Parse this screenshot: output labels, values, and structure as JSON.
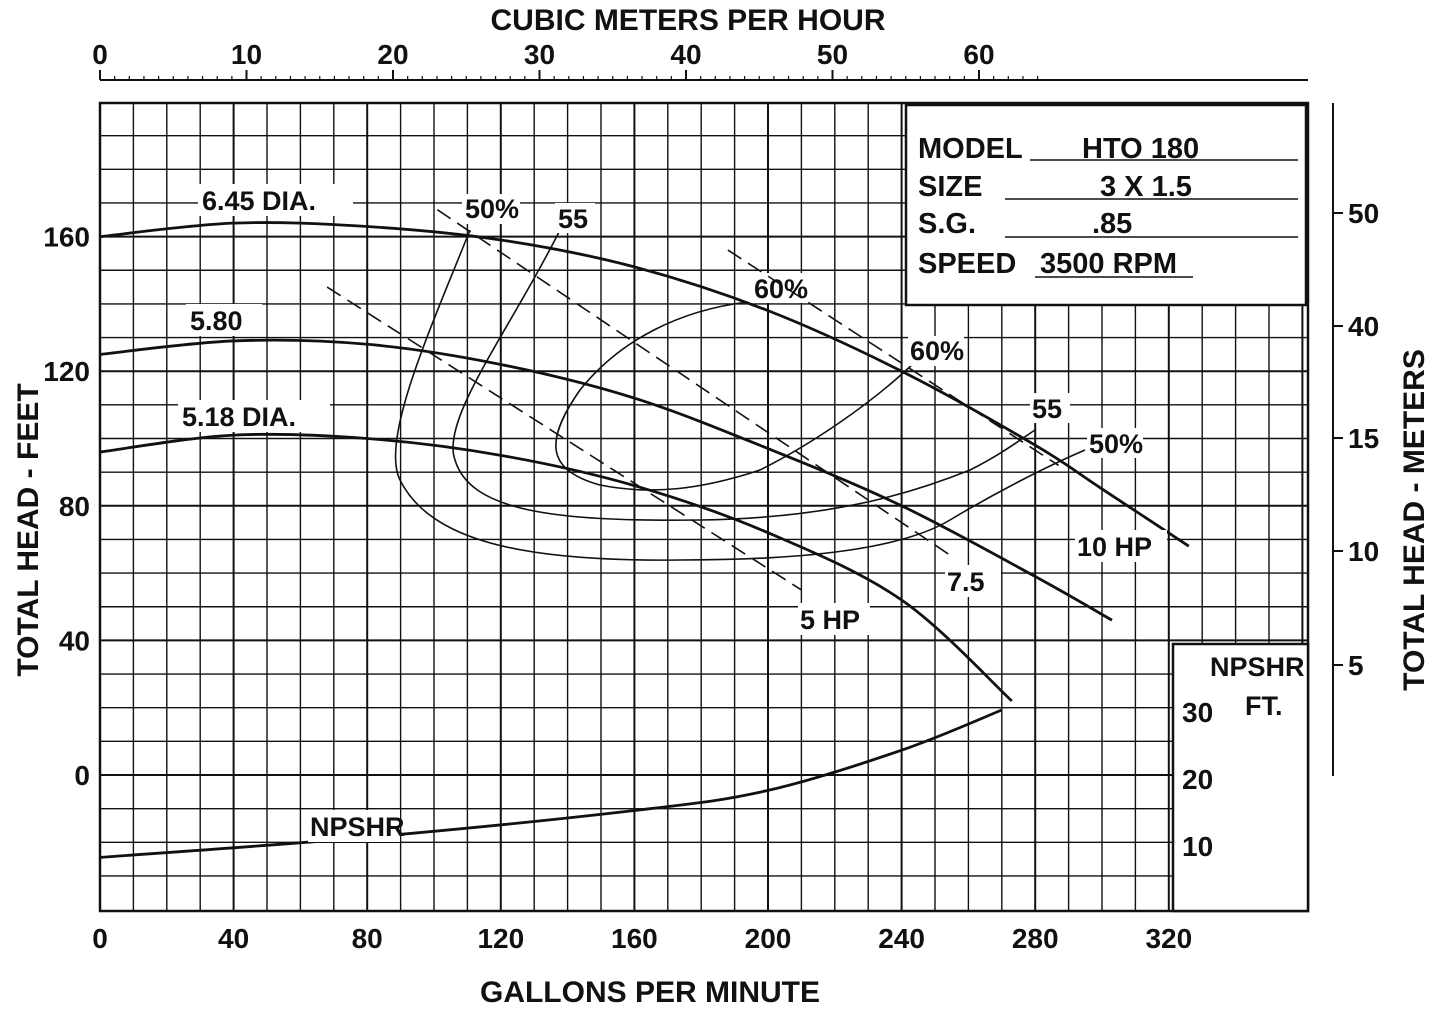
{
  "chart_data": {
    "type": "line",
    "title": "",
    "xlabel": "GALLONS PER MINUTE",
    "ylabel": "TOTAL HEAD - FEET",
    "x2label": "CUBIC METERS PER HOUR",
    "y2label": "TOTAL HEAD - METERS",
    "xlim": [
      0,
      362
    ],
    "ylim": [
      -40,
      200
    ],
    "x_ticks": [
      "0",
      "40",
      "80",
      "120",
      "160",
      "200",
      "240",
      "280",
      "320"
    ],
    "y_ticks": [
      "0",
      "40",
      "80",
      "120",
      "160"
    ],
    "x2_ticks": [
      "0",
      "10",
      "20",
      "30",
      "40",
      "50",
      "60"
    ],
    "y2_ticks": [
      "5",
      "10",
      "15",
      "40",
      "50"
    ],
    "npshr_ticks": [
      "10",
      "20",
      "30"
    ],
    "npshr_axis_label": [
      "NPSHR",
      "FT."
    ],
    "grid": true,
    "info": {
      "model_label": "MODEL",
      "model": "HTO 180",
      "size_label": "SIZE",
      "size": "3 X 1.5",
      "sg_label": "S.G.",
      "sg": ".85",
      "speed_label": "SPEED",
      "speed": "3500 RPM"
    },
    "series": [
      {
        "name": "6.45 DIA.",
        "kind": "head",
        "x": [
          0,
          40,
          80,
          120,
          160,
          200,
          240,
          280,
          300,
          326
        ],
        "y": [
          160,
          164,
          163,
          159,
          151,
          138,
          120,
          98,
          85,
          68
        ]
      },
      {
        "name": "5.80",
        "kind": "head",
        "x": [
          0,
          40,
          80,
          120,
          160,
          200,
          240,
          280,
          303
        ],
        "y": [
          125,
          129,
          128,
          122,
          112,
          97,
          80,
          59,
          46
        ]
      },
      {
        "name": "5.18 DIA.",
        "kind": "head",
        "x": [
          0,
          40,
          80,
          120,
          160,
          200,
          240,
          273
        ],
        "y": [
          96,
          101,
          100,
          95,
          86,
          72,
          52,
          22
        ]
      },
      {
        "name": "NPSHR",
        "kind": "npshr",
        "x": [
          0,
          80,
          160,
          200,
          240,
          270
        ],
        "y": [
          8,
          11,
          15,
          18,
          24,
          30
        ]
      }
    ],
    "power_lines": [
      {
        "label": "5 HP",
        "x": [
          68,
          210
        ],
        "y": [
          145,
          55
        ]
      },
      {
        "label": "7.5",
        "x": [
          101,
          255
        ],
        "y": [
          168,
          65
        ]
      },
      {
        "label": "10 HP",
        "x": [
          188,
          287
        ],
        "y": [
          156,
          92
        ]
      }
    ],
    "efficiency_labels": [
      "50%",
      "55",
      "60%",
      "60%",
      "55",
      "50%"
    ]
  }
}
